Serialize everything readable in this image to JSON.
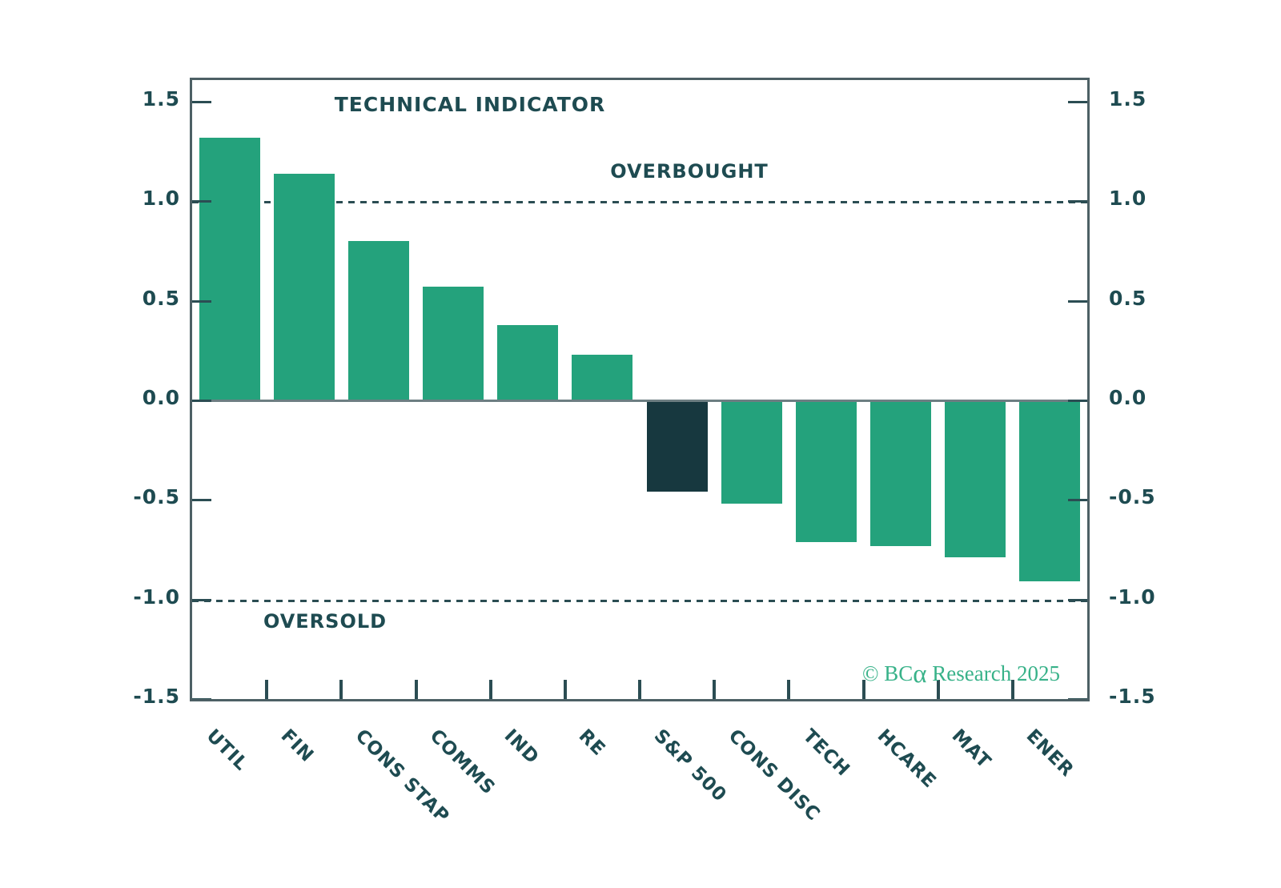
{
  "chart_data": {
    "type": "bar",
    "title": "TECHNICAL INDICATOR",
    "categories": [
      "UTIL",
      "FIN",
      "CONS STAP",
      "COMMS",
      "IND",
      "RE",
      "S&P 500",
      "CONS DISC",
      "TECH",
      "HCARE",
      "MAT",
      "ENER"
    ],
    "values": [
      1.32,
      1.14,
      0.8,
      0.57,
      0.38,
      0.23,
      -0.46,
      -0.52,
      -0.71,
      -0.73,
      -0.79,
      -0.91
    ],
    "highlight_category": "S&P 500",
    "highlight_index": 6,
    "xlabel": "",
    "ylabel": "",
    "ylim": [
      -1.5,
      1.5
    ],
    "y_tick_values": [
      1.5,
      1.0,
      0.5,
      0.0,
      -0.5,
      -1.0,
      -1.5
    ],
    "y_tick_labels": [
      "1.5",
      "1.0",
      "0.5",
      "0.0",
      "-0.5",
      "-1.0",
      "-1.5"
    ],
    "y_axis_mirrored_right": true,
    "grid": false,
    "legend": null,
    "zero_line": 0.0,
    "reference_lines": [
      {
        "value": 1.0,
        "label": "OVERBOUGHT",
        "style": "dashed"
      },
      {
        "value": -1.0,
        "label": "OVERSOLD",
        "style": "dashed"
      }
    ]
  },
  "watermark": {
    "prefix": "© BC",
    "alpha": "α",
    "suffix": " Research 2025"
  },
  "colors": {
    "bar": "#24A27C",
    "bar_highlight": "#17383F",
    "text": "#1E4B51",
    "spine": "#4D6065",
    "tick": "#2B4D53",
    "zero_line": "#6D7E82",
    "dashed_line": "#2B4D53",
    "watermark": "#38B289",
    "background": "#FFFFFF"
  }
}
